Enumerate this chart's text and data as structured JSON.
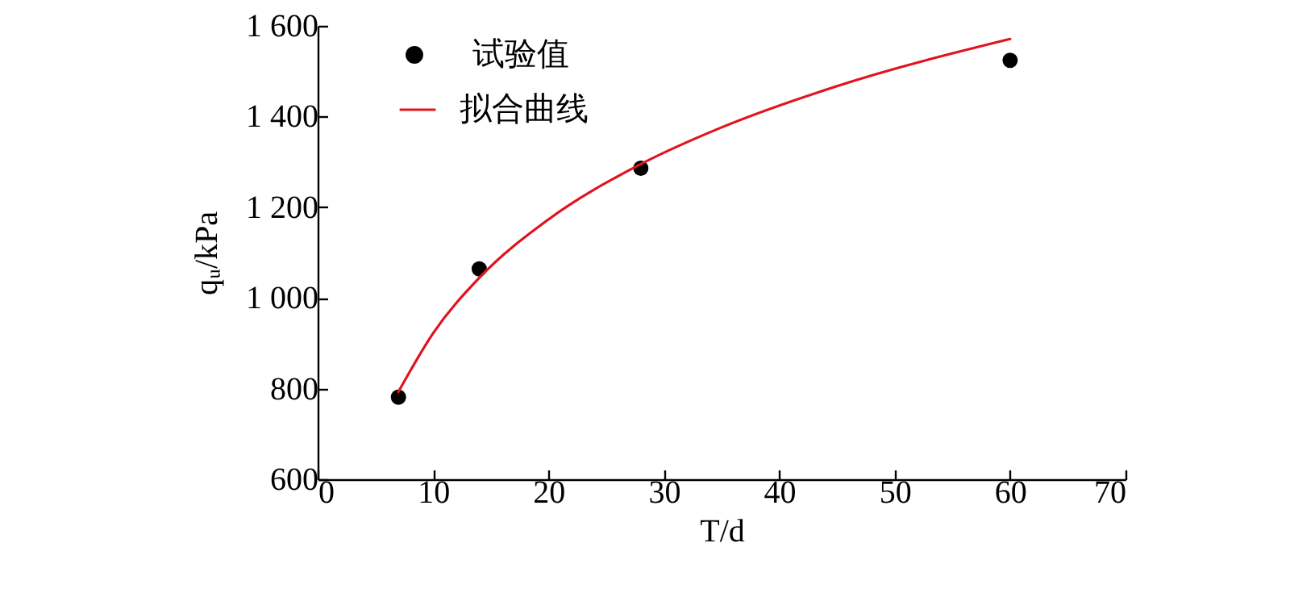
{
  "chart_data": {
    "type": "scatter",
    "xlabel": "T/d",
    "ylabel": "qᵤ/kPa",
    "xlim": [
      0,
      70
    ],
    "xticks": [
      0,
      10,
      20,
      30,
      40,
      50,
      60,
      70
    ],
    "ylim": [
      600,
      1600
    ],
    "yticks": [
      600,
      800,
      {
        "value": 1000,
        "label": "1 000"
      },
      {
        "value": 1200,
        "label": "1 200"
      },
      {
        "value": 1400,
        "label": "1 400"
      },
      {
        "value": 1600,
        "label": "1 600"
      }
    ],
    "grid": false,
    "legend": "top left",
    "line_style": "solid",
    "series": [
      {
        "name": "试验值",
        "marker": "circle",
        "color": "#000000",
        "x": [
          7,
          14,
          28,
          60
        ],
        "values": [
          781,
          1064,
          1286,
          1524
        ]
      },
      {
        "name": "拟合曲线",
        "type": "line",
        "marker": "none",
        "color": "#e0141e",
        "x": [
          7,
          10,
          14,
          20,
          28,
          35,
          45,
          60
        ],
        "values": [
          793,
          922,
          1044,
          1173,
          1295,
          1376,
          1467,
          1571
        ]
      }
    ]
  }
}
